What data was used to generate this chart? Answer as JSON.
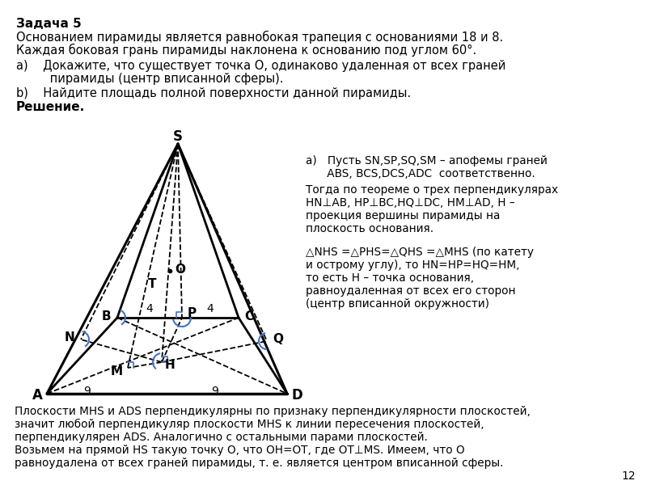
{
  "title_bold": "Задача 5",
  "problem_text_1": "Основанием пирамиды является равнобокая трапеция с основаниями 18 и 8.",
  "problem_text_2": "Каждая боковая грань пирамиды наклонена к основанию под углом 60°.",
  "item_a_text_1": "Докажите, что существует точка O, одинаково удаленная от всех граней",
  "item_a_text_2": "пирамиды (центр вписанной сферы).",
  "item_b_text": "Найдите площадь полной поверхности данной пирамиды.",
  "reshenie": "Решение.",
  "right_a_1": "a)   Пусть SN,SP,SQ,SM – апофемы граней",
  "right_a_2": "      ABS, BCS,DCS,ADC  соответственно.",
  "right_a_3": "Тогда по теореме о трех перпендикулярах",
  "right_a_4": "HN⊥AB, HP⊥BC,HQ⊥DC, HM⊥AD, H –",
  "right_a_5": "проекция вершины пирамиды на",
  "right_a_6": "плоскость основания.",
  "right_b_1": "△NHS =△PHS=△QHS =△MHS (по катету",
  "right_b_2": "и острому углу), то HN=HP=HQ=HM,",
  "right_b_3": "то есть H – точка основания,",
  "right_b_4": "равноудаленная от всех его сторон",
  "right_b_5": "(центр вписанной окружности)",
  "bottom_text_1": "Плоскости MHS и ADS перпендикулярны по признаку перпендикулярности плоскостей,",
  "bottom_text_2": "значит любой перпендикуляр плоскости MHS к линии пересечения плоскостей,",
  "bottom_text_3": "перпендикулярен ADS. Аналогично с остальными парами плоскостей.",
  "bottom_text_4": "Возьмем на прямой HS такую точку O, что OH=OT, где OT⊥MS. Имеем, что O",
  "bottom_text_5": "равноудалена от всех граней пирамиды, т. е. является центром вписанной сферы.",
  "page_num": "12",
  "bg_color": "#ffffff"
}
